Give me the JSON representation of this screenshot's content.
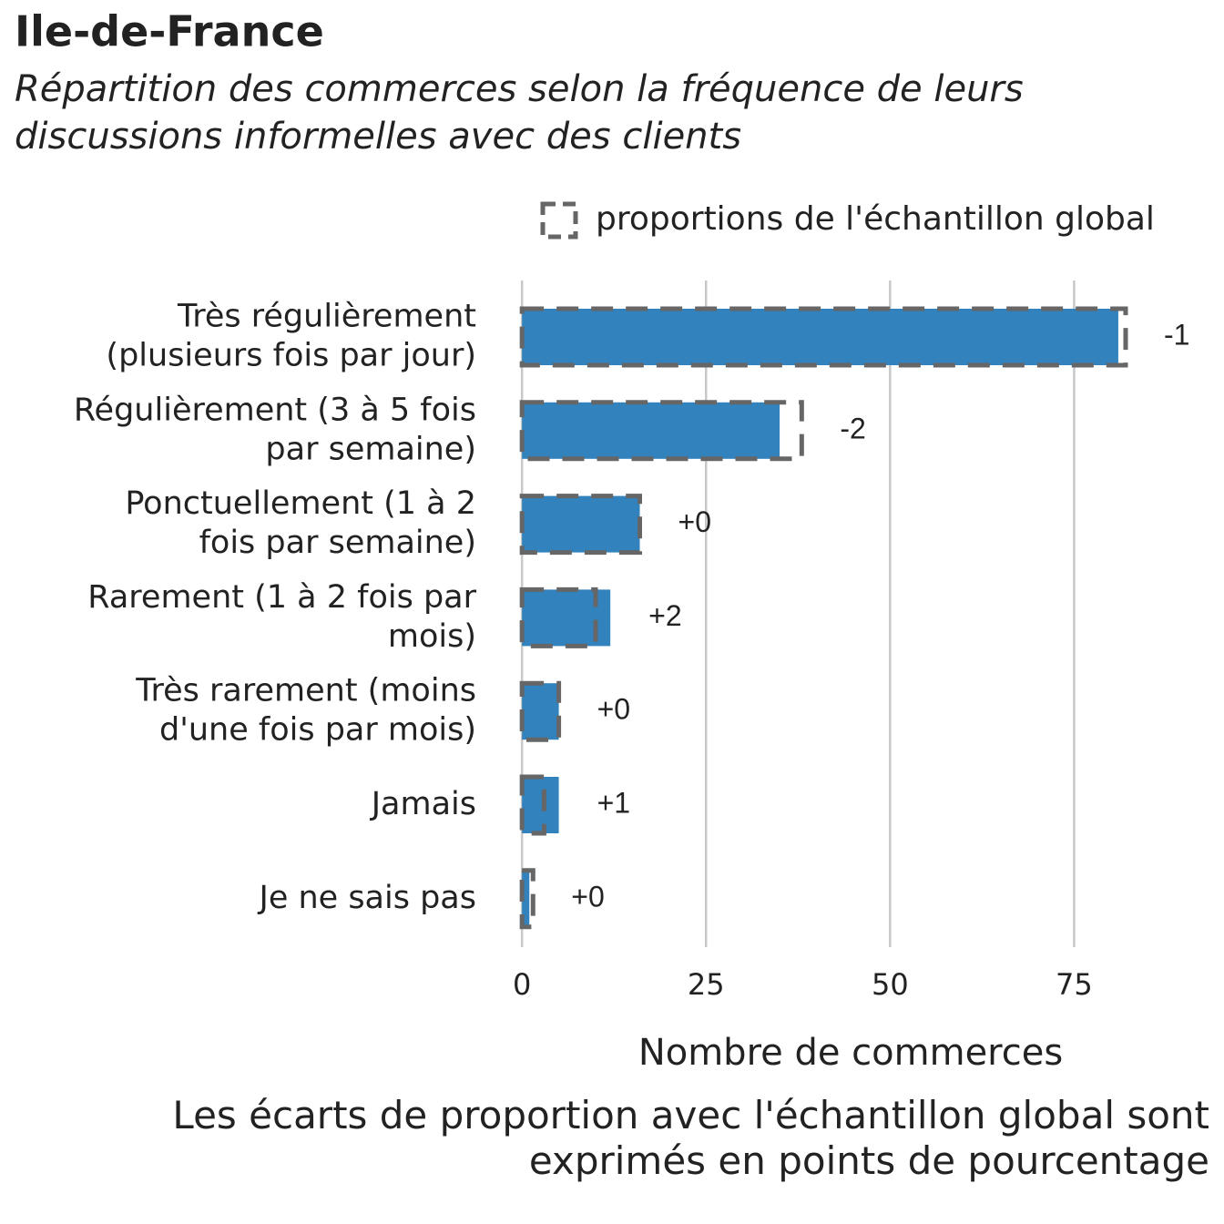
{
  "chart_data": {
    "type": "bar",
    "title": "Ile-de-France",
    "subtitle": "Répartition des commerces selon la fréquence de leurs\ndiscussions informelles avec des clients",
    "categories": [
      "Très régulièrement\n(plusieurs fois par jour)",
      "Régulièrement (3 à 5 fois\npar semaine)",
      "Ponctuellement (1 à 2\nfois par semaine)",
      "Rarement (1 à 2 fois par\nmois)",
      "Très rarement (moins\nd'une fois par mois)",
      "Jamais",
      "Je ne sais pas"
    ],
    "values": [
      81,
      35,
      16,
      12,
      5,
      5,
      1
    ],
    "color": "#3182bd",
    "reference": {
      "name": "proportions de l'échantillon global",
      "values": [
        82,
        38,
        16,
        10,
        5,
        3,
        1.5
      ],
      "color": "#666666"
    },
    "diff_labels": [
      "-1",
      "-2",
      "+0",
      "+2",
      "+0",
      "+1",
      "+0"
    ],
    "xlim": [
      -2,
      94
    ],
    "xticks": [
      0,
      25,
      50,
      75
    ],
    "grid": true,
    "xlabel": "Nombre de commerces",
    "caption": "Les écarts de proportion avec l'échantillon global sont\nexprimés en points de pourcentage"
  }
}
